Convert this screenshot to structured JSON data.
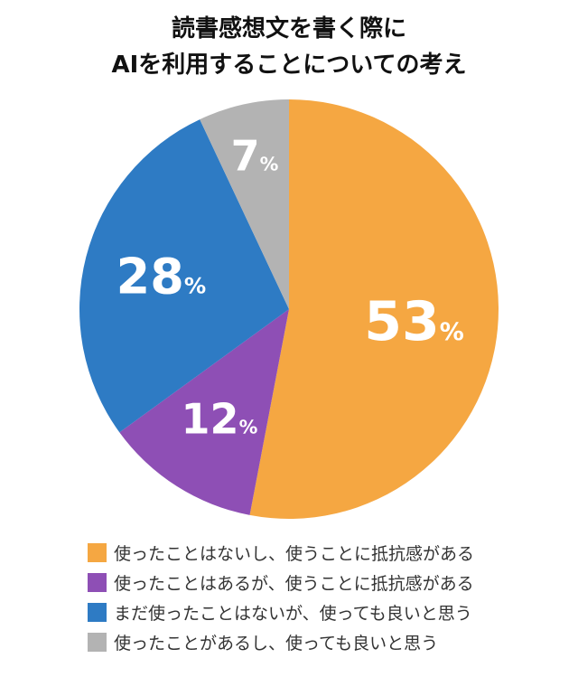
{
  "chart_data": {
    "type": "pie",
    "title_lines": [
      "読書感想文を書く際に",
      "AIを利用することについての考え"
    ],
    "unit": "%",
    "start": "top",
    "direction": "clockwise",
    "legend_position": "bottom",
    "slices": [
      {
        "label": "使ったことはないし、使うことに抵抗感がある",
        "value": 53,
        "color": "#F5A742"
      },
      {
        "label": "使ったことはあるが、使うことに抵抗感がある",
        "value": 12,
        "color": "#8E4FB5"
      },
      {
        "label": "まだ使ったことはないが、使っても良いと思う",
        "value": 28,
        "color": "#2E7BC4"
      },
      {
        "label": "使ったことがあるし、使っても良いと思う",
        "value": 7,
        "color": "#B3B3B3"
      }
    ]
  }
}
